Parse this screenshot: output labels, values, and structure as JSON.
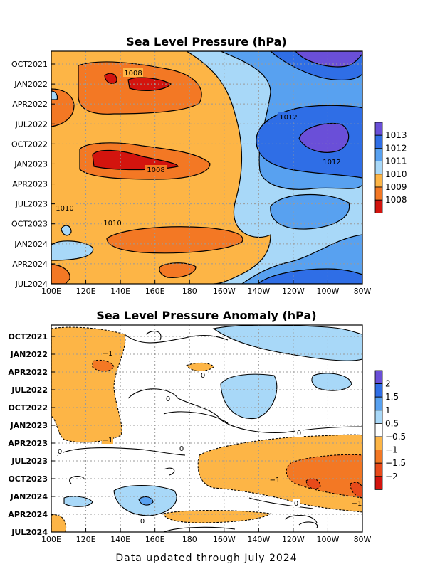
{
  "footer": "Data updated through July 2024",
  "chart_data": [
    {
      "type": "heatmap",
      "title": "Sea Level Pressure (hPa)",
      "x_ticks": [
        "100E",
        "120E",
        "140E",
        "160E",
        "180",
        "160W",
        "140W",
        "120W",
        "100W",
        "80W"
      ],
      "y_ticks": [
        "OCT2021",
        "JAN2022",
        "APR2022",
        "JUL2022",
        "OCT2022",
        "JAN2023",
        "APR2023",
        "JUL2023",
        "OCT2023",
        "JAN2024",
        "APR2024",
        "JUL2024"
      ],
      "grid": true,
      "colorbar": {
        "labels": [
          "1013",
          "1012",
          "1011",
          "1010",
          "1009",
          "1008"
        ],
        "colors": [
          "#6a4fd8",
          "#2f6ee6",
          "#58a1f0",
          "#a8d8f8",
          "#fdb546",
          "#f37824",
          "#d3140e"
        ]
      },
      "contour_labels": [
        "1008",
        "1012",
        "1012",
        "1008",
        "1010",
        "1010"
      ]
    },
    {
      "type": "heatmap",
      "title": "Sea Level Pressure Anomaly (hPa)",
      "x_ticks": [
        "100E",
        "120E",
        "140E",
        "160E",
        "180",
        "160W",
        "140W",
        "120W",
        "100W",
        "80W"
      ],
      "y_ticks": [
        "OCT2021",
        "JAN2022",
        "APR2022",
        "JUL2022",
        "OCT2022",
        "JAN2023",
        "APR2023",
        "JUL2023",
        "OCT2023",
        "JAN2024",
        "APR2024",
        "JUL2024"
      ],
      "grid": true,
      "colorbar": {
        "labels": [
          "2",
          "1.5",
          "1",
          "0.5",
          "−0.5",
          "−1",
          "−1.5",
          "−2"
        ],
        "colors": [
          "#6a4fd8",
          "#2f6ee6",
          "#58a1f0",
          "#a8d8f8",
          "#ffffff",
          "#fdb546",
          "#f37824",
          "#e84a1a",
          "#d3140e"
        ]
      },
      "contour_labels": [
        "−1",
        "0",
        "0",
        "−1",
        "0",
        "0",
        "0",
        "−1",
        "0",
        "−1",
        "0"
      ]
    }
  ]
}
